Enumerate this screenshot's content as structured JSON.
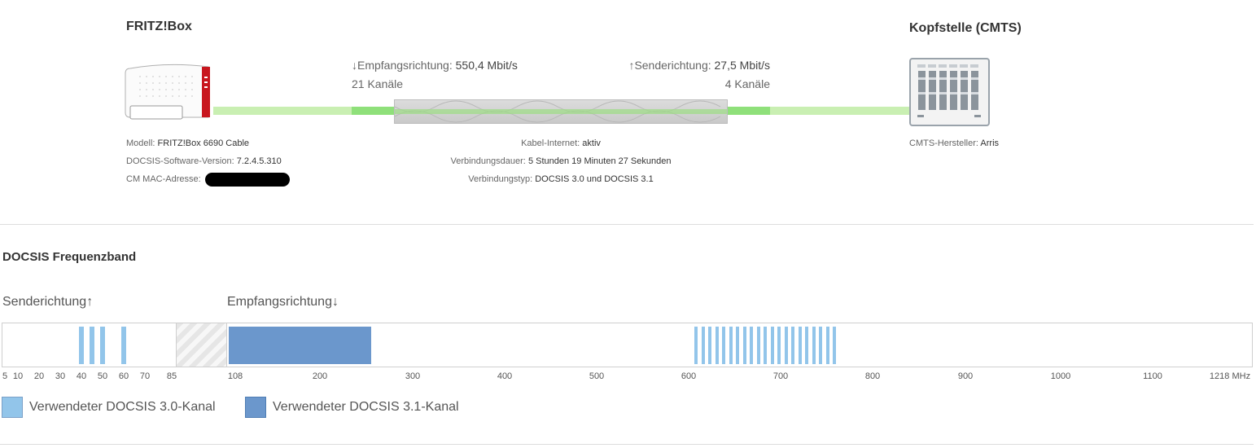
{
  "fritzbox": {
    "title": "FRITZ!Box",
    "model_label": "Modell:",
    "model_value": "FRITZ!Box 6690 Cable",
    "docsis_sw_label": "DOCSIS-Software-Version:",
    "docsis_sw_value": "7.2.4.5.310",
    "mac_label": "CM MAC-Adresse:"
  },
  "cmts": {
    "title": "Kopfstelle (CMTS)",
    "vendor_label": "CMTS-Hersteller:",
    "vendor_value": "Arris"
  },
  "downstream": {
    "label": "↓Empfangsrichtung:",
    "rate": "550,4 Mbit/s",
    "channels": "21 Kanäle"
  },
  "upstream": {
    "label": "↑Senderichtung:",
    "rate": "27,5 Mbit/s",
    "channels": "4 Kanäle"
  },
  "connection": {
    "internet_label": "Kabel-Internet:",
    "internet_value": "aktiv",
    "duration_label": "Verbindungsdauer:",
    "duration_value": "5 Stunden 19 Minuten 27 Sekunden",
    "type_label": "Verbindungstyp:",
    "type_value": "DOCSIS 3.0 und DOCSIS 3.1"
  },
  "band": {
    "title": "DOCSIS Frequenzband",
    "upstream_label": "Senderichtung↑",
    "downstream_label": "Empfangsrichtung↓",
    "ticks_up": [
      "5",
      "10",
      "20",
      "30",
      "40",
      "50",
      "60",
      "70",
      "85"
    ],
    "ticks_down": [
      "108",
      "200",
      "300",
      "400",
      "500",
      "600",
      "700",
      "800",
      "900",
      "1000",
      "1100",
      "1218 MHz"
    ],
    "upstream_channels_mhz": [
      40,
      45,
      50,
      60
    ],
    "docsis31_block_mhz": [
      108,
      250
    ],
    "downstream_channels_first_mhz": 610,
    "downstream_channels_count": 21,
    "colors": {
      "docsis30": "#92c5ea",
      "docsis31": "#6b97cc"
    }
  },
  "legend": {
    "docsis30": "Verwendeter DOCSIS 3.0-Kanal",
    "docsis31": "Verwendeter DOCSIS 3.1-Kanal"
  }
}
